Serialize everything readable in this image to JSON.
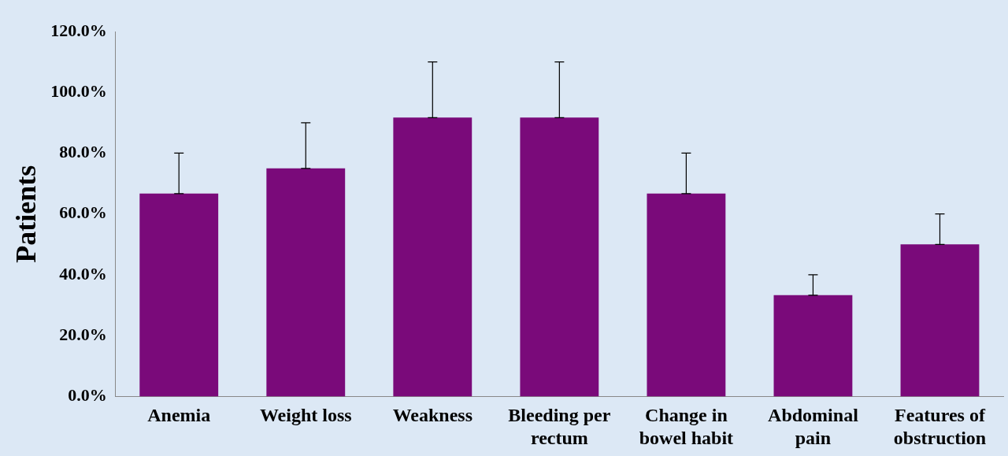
{
  "chart_data": {
    "type": "bar",
    "ylabel": "Patients",
    "categories": [
      "Anemia",
      "Weight loss",
      "Weakness",
      "Bleeding per rectum",
      "Change in bowel habit",
      "Abdominal pain",
      "Features of obstruction"
    ],
    "values": [
      66.7,
      75,
      91.7,
      91.7,
      66.7,
      33.3,
      50
    ],
    "errors": [
      [
        66.7,
        80
      ],
      [
        75,
        90
      ],
      [
        91.7,
        110
      ],
      [
        91.7,
        110
      ],
      [
        66.7,
        80
      ],
      [
        33.3,
        40
      ],
      [
        50,
        60
      ]
    ],
    "color": "#7a0a7a",
    "ylim": [
      0,
      120
    ],
    "yticks": [
      {
        "value": 0,
        "label": "0.0%"
      },
      {
        "value": 20,
        "label": "20.0%"
      },
      {
        "value": 40,
        "label": "40.0%"
      },
      {
        "value": 60,
        "label": "60.0%"
      },
      {
        "value": 80,
        "label": "80.0%"
      },
      {
        "value": 100,
        "label": "100.0%"
      },
      {
        "value": 120,
        "label": "120.0%"
      }
    ],
    "grid": false,
    "legend": false
  }
}
